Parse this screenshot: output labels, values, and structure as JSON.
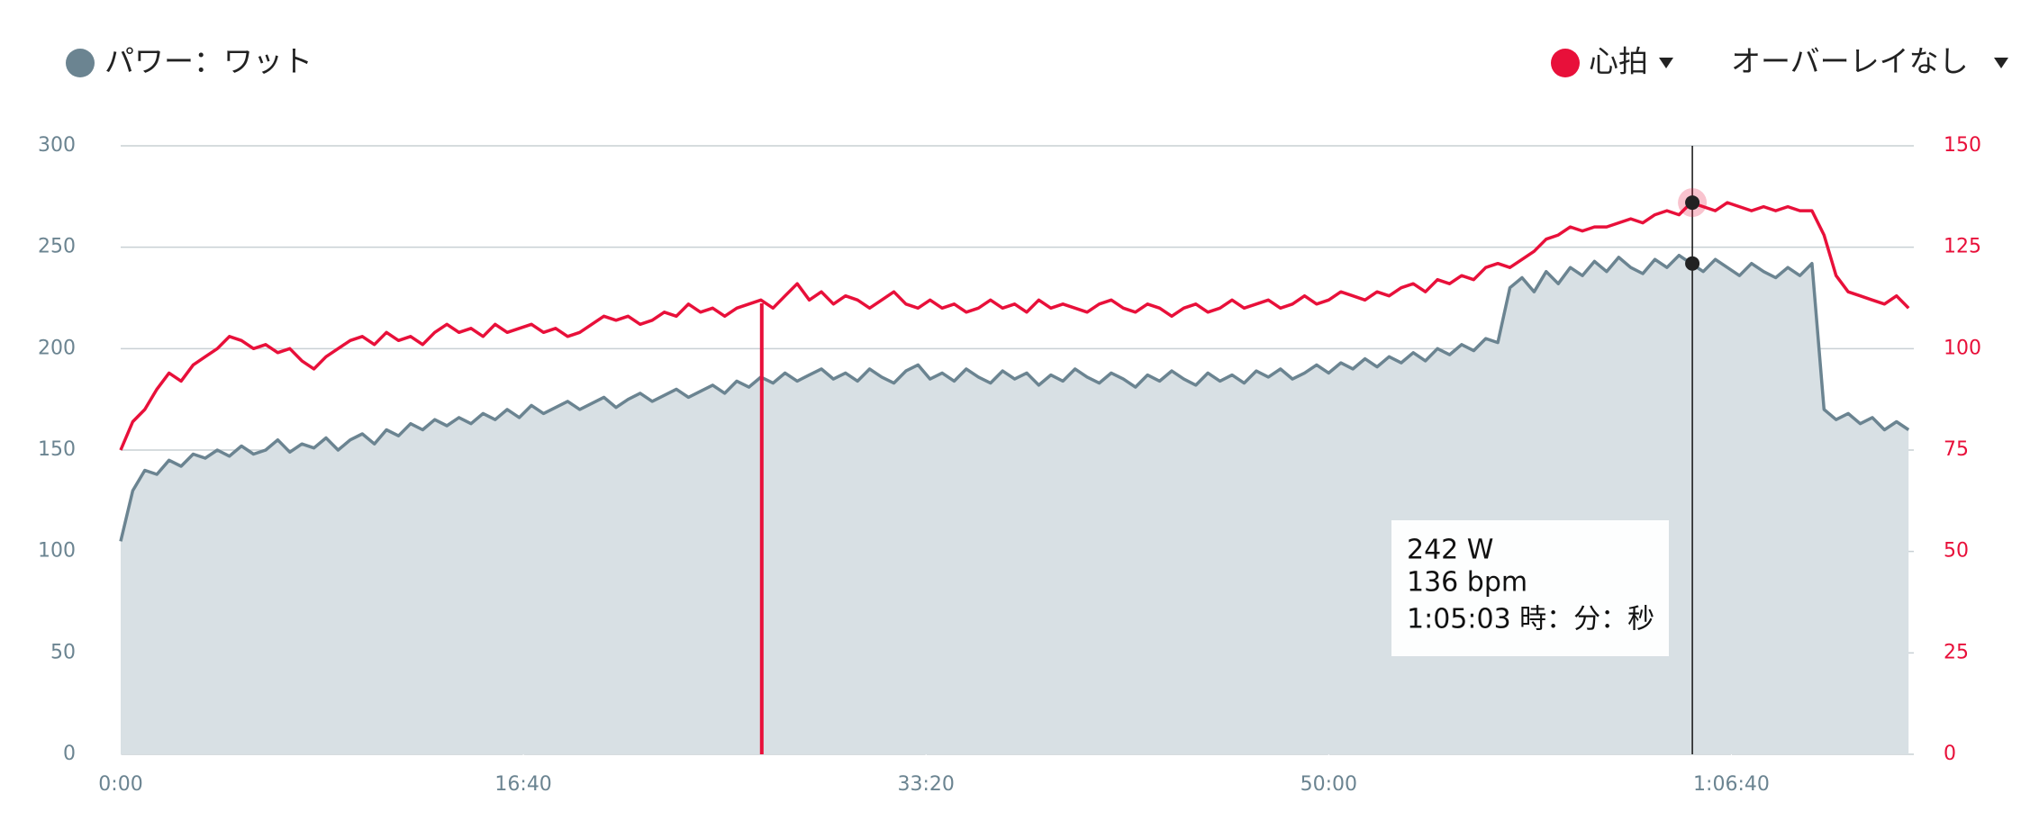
{
  "chart_data": {
    "type": "line",
    "x": [
      0,
      30,
      60,
      90,
      120,
      150,
      180,
      210,
      240,
      270,
      300,
      330,
      360,
      390,
      420,
      450,
      480,
      510,
      540,
      570,
      600,
      630,
      660,
      690,
      720,
      750,
      780,
      810,
      840,
      870,
      900,
      930,
      960,
      990,
      1020,
      1050,
      1080,
      1110,
      1140,
      1170,
      1200,
      1230,
      1260,
      1290,
      1320,
      1350,
      1380,
      1410,
      1440,
      1470,
      1500,
      1530,
      1560,
      1590,
      1620,
      1650,
      1680,
      1710,
      1740,
      1770,
      1800,
      1830,
      1860,
      1890,
      1920,
      1950,
      1980,
      2010,
      2040,
      2070,
      2100,
      2130,
      2160,
      2190,
      2220,
      2250,
      2280,
      2310,
      2340,
      2370,
      2400,
      2430,
      2460,
      2490,
      2520,
      2550,
      2580,
      2610,
      2640,
      2670,
      2700,
      2730,
      2760,
      2790,
      2820,
      2850,
      2880,
      2910,
      2940,
      2970,
      3000,
      3030,
      3060,
      3090,
      3120,
      3150,
      3180,
      3210,
      3240,
      3270,
      3300,
      3330,
      3360,
      3390,
      3420,
      3450,
      3480,
      3510,
      3540,
      3570,
      3600,
      3630,
      3660,
      3690,
      3720,
      3750,
      3780,
      3810,
      3840,
      3870,
      3900,
      3930,
      3960,
      3990,
      4020,
      4050,
      4080,
      4110,
      4140,
      4170,
      4200,
      4230,
      4260,
      4290,
      4320,
      4350,
      4380,
      4410,
      4440
    ],
    "series": [
      {
        "name": "パワー：ワット",
        "color": "#6b8491",
        "fill": "#d8e0e4",
        "values": [
          105,
          130,
          140,
          138,
          145,
          142,
          148,
          146,
          150,
          147,
          152,
          148,
          150,
          155,
          149,
          153,
          151,
          156,
          150,
          155,
          158,
          153,
          160,
          157,
          163,
          160,
          165,
          162,
          166,
          163,
          168,
          165,
          170,
          166,
          172,
          168,
          171,
          174,
          170,
          173,
          176,
          171,
          175,
          178,
          174,
          177,
          180,
          176,
          179,
          182,
          178,
          184,
          181,
          186,
          183,
          188,
          184,
          187,
          190,
          185,
          188,
          184,
          190,
          186,
          183,
          189,
          192,
          185,
          188,
          184,
          190,
          186,
          183,
          189,
          185,
          188,
          182,
          187,
          184,
          190,
          186,
          183,
          188,
          185,
          181,
          187,
          184,
          189,
          185,
          182,
          188,
          184,
          187,
          183,
          189,
          186,
          190,
          185,
          188,
          192,
          188,
          193,
          190,
          195,
          191,
          196,
          193,
          198,
          194,
          200,
          197,
          202,
          199,
          205,
          203,
          230,
          235,
          228,
          238,
          232,
          240,
          236,
          243,
          238,
          245,
          240,
          237,
          244,
          240,
          246,
          242,
          238,
          244,
          240,
          236,
          242,
          238,
          235,
          240,
          236,
          242,
          170,
          165,
          168,
          163,
          166,
          160,
          164,
          160
        ]
      },
      {
        "name": "心拍",
        "color": "#e8103a",
        "axis": "y2",
        "values": [
          75,
          82,
          85,
          90,
          94,
          92,
          96,
          98,
          100,
          103,
          102,
          100,
          101,
          99,
          100,
          97,
          95,
          98,
          100,
          102,
          103,
          101,
          104,
          102,
          103,
          101,
          104,
          106,
          104,
          105,
          103,
          106,
          104,
          105,
          106,
          104,
          105,
          103,
          104,
          106,
          108,
          107,
          108,
          106,
          107,
          109,
          108,
          111,
          109,
          110,
          108,
          110,
          111,
          112,
          110,
          113,
          116,
          112,
          114,
          111,
          113,
          112,
          110,
          112,
          114,
          111,
          110,
          112,
          110,
          111,
          109,
          110,
          112,
          110,
          111,
          109,
          112,
          110,
          111,
          110,
          109,
          111,
          112,
          110,
          109,
          111,
          110,
          108,
          110,
          111,
          109,
          110,
          112,
          110,
          111,
          112,
          110,
          111,
          113,
          111,
          112,
          114,
          113,
          112,
          114,
          113,
          115,
          116,
          114,
          117,
          116,
          118,
          117,
          120,
          121,
          120,
          122,
          124,
          127,
          128,
          130,
          129,
          130,
          130,
          131,
          132,
          131,
          133,
          134,
          133,
          136,
          135,
          134,
          136,
          135,
          134,
          135,
          134,
          135,
          134,
          134,
          128,
          118,
          114,
          113,
          112,
          111,
          113,
          110
        ]
      }
    ],
    "overlay_menu": "オーバーレイなし",
    "xlim": [
      0,
      4453
    ],
    "xticks": [
      {
        "value": 0,
        "label": "0:00"
      },
      {
        "value": 1000,
        "label": "16:40"
      },
      {
        "value": 2000,
        "label": "33:20"
      },
      {
        "value": 3000,
        "label": "50:00"
      },
      {
        "value": 4000,
        "label": "1:06:40"
      }
    ],
    "ylim": [
      0,
      300
    ],
    "yticks": [
      0,
      50,
      100,
      150,
      200,
      250,
      300
    ],
    "y2lim": [
      0,
      150
    ],
    "y2ticks": [
      0,
      25,
      50,
      75,
      100,
      125,
      150
    ],
    "grid": true,
    "markers": [
      {
        "x": 1592,
        "color": "#e8103a"
      }
    ],
    "tooltip": {
      "x": {
        "value": 3903,
        "label": "1:05:03 時：分：秒"
      },
      "values": [
        242,
        136
      ],
      "value_labels": [
        "242 W",
        "136 bpm"
      ]
    }
  }
}
